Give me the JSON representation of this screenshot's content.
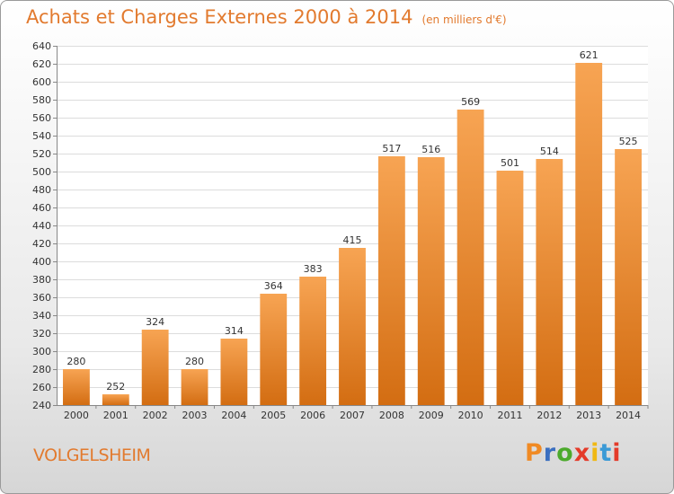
{
  "header": {
    "title": "Achats et Charges Externes 2000 à 2014",
    "unit": "(en milliers d'€)"
  },
  "footer": {
    "commune": "VOLGELSHEIM",
    "logo": "Proxiti"
  },
  "colors": {
    "accent": "#e27a2e",
    "bar_top": "#f7a453",
    "bar_bottom": "#d36d12",
    "logo_letters": [
      "#f08a24",
      "#3b6fc0",
      "#4caa2c",
      "#e43b2a",
      "#f0b814",
      "#3b9ad6",
      "#e43b2a"
    ]
  },
  "chart_data": {
    "type": "bar",
    "title": "Achats et Charges Externes 2000 à 2014",
    "subtitle": "(en milliers d'€)",
    "xlabel": "",
    "ylabel": "",
    "categories": [
      "2000",
      "2001",
      "2002",
      "2003",
      "2004",
      "2005",
      "2006",
      "2007",
      "2008",
      "2009",
      "2010",
      "2011",
      "2012",
      "2013",
      "2014"
    ],
    "values": [
      280,
      252,
      324,
      280,
      314,
      364,
      383,
      415,
      517,
      516,
      569,
      501,
      514,
      621,
      525
    ],
    "ylim": [
      240,
      640
    ],
    "yticks": [
      240,
      260,
      280,
      300,
      320,
      340,
      360,
      380,
      400,
      420,
      440,
      460,
      480,
      500,
      520,
      540,
      560,
      580,
      600,
      620,
      640
    ],
    "grid": true,
    "legend": "none"
  }
}
